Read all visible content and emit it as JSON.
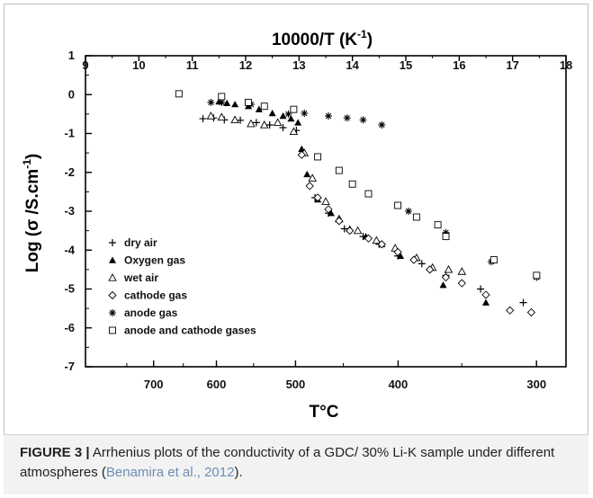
{
  "figure": {
    "top_title": "10000/T (K",
    "top_title_exp": "-1",
    "top_title_close": ")",
    "y_title": "Log (σ /S.cm",
    "y_title_exp": "-1",
    "y_title_close": ")",
    "x_title": "T°C"
  },
  "caption": {
    "label": "FIGURE 3 |",
    "text": " Arrhenius plots of the conductivity of a GDC/ 30% Li-K sample under different atmospheres (",
    "reference": "Benamira et al., 2012",
    "end": ")."
  },
  "chart_data": {
    "type": "scatter",
    "top_axis": {
      "label": "10000/T (K-1)",
      "range": [
        9,
        18
      ],
      "ticks": [
        "9",
        "10",
        "11",
        "12",
        "13",
        "14",
        "15",
        "16",
        "17",
        "18"
      ]
    },
    "bottom_axis": {
      "label": "T°C",
      "ticks": [
        "700",
        "600",
        "500",
        "400",
        "300"
      ]
    },
    "y_axis": {
      "label": "Log (σ /S.cm-1)",
      "range": [
        -7,
        1
      ],
      "ticks": [
        "1",
        "0",
        "-1",
        "-2",
        "-3",
        "-4",
        "-5",
        "-6",
        "-7"
      ]
    },
    "legend_position": "bottom-left",
    "series": [
      {
        "name": "dry air",
        "marker": "plus",
        "points": [
          [
            11.2,
            -0.62
          ],
          [
            11.4,
            -0.6
          ],
          [
            11.6,
            -0.65
          ],
          [
            11.9,
            -0.66
          ],
          [
            12.2,
            -0.72
          ],
          [
            12.45,
            -0.78
          ],
          [
            12.7,
            -0.85
          ],
          [
            12.95,
            -0.92
          ],
          [
            13.3,
            -2.65
          ],
          [
            13.55,
            -3.05
          ],
          [
            13.85,
            -3.45
          ],
          [
            14.2,
            -3.65
          ],
          [
            14.5,
            -3.85
          ],
          [
            14.85,
            -4.15
          ],
          [
            15.3,
            -4.35
          ],
          [
            15.75,
            -4.65
          ],
          [
            16.4,
            -5.0
          ],
          [
            17.2,
            -5.35
          ]
        ]
      },
      {
        "name": "Oxygen gas",
        "marker": "filled-triangle",
        "points": [
          [
            11.5,
            -0.18
          ],
          [
            11.65,
            -0.22
          ],
          [
            11.8,
            -0.25
          ],
          [
            12.05,
            -0.3
          ],
          [
            12.25,
            -0.38
          ],
          [
            12.5,
            -0.48
          ],
          [
            12.7,
            -0.55
          ],
          [
            12.85,
            -0.62
          ],
          [
            12.98,
            -0.72
          ],
          [
            13.05,
            -1.4
          ],
          [
            13.15,
            -2.05
          ],
          [
            13.35,
            -2.7
          ],
          [
            13.6,
            -3.05
          ],
          [
            13.95,
            -3.45
          ],
          [
            14.25,
            -3.65
          ],
          [
            14.55,
            -3.85
          ],
          [
            14.9,
            -4.15
          ],
          [
            15.7,
            -4.9
          ],
          [
            16.5,
            -5.35
          ]
        ]
      },
      {
        "name": "wet air",
        "marker": "open-triangle",
        "points": [
          [
            11.35,
            -0.55
          ],
          [
            11.55,
            -0.58
          ],
          [
            11.8,
            -0.65
          ],
          [
            12.1,
            -0.75
          ],
          [
            12.35,
            -0.78
          ],
          [
            12.6,
            -0.72
          ],
          [
            12.9,
            -0.95
          ],
          [
            13.1,
            -1.5
          ],
          [
            13.25,
            -2.15
          ],
          [
            13.5,
            -2.75
          ],
          [
            13.75,
            -3.2
          ],
          [
            14.1,
            -3.5
          ],
          [
            14.45,
            -3.75
          ],
          [
            14.8,
            -3.95
          ],
          [
            15.2,
            -4.2
          ],
          [
            15.5,
            -4.45
          ],
          [
            15.8,
            -4.5
          ],
          [
            16.05,
            -4.55
          ]
        ]
      },
      {
        "name": "cathode gas",
        "marker": "diamond",
        "points": [
          [
            13.05,
            -1.55
          ],
          [
            13.2,
            -2.35
          ],
          [
            13.35,
            -2.65
          ],
          [
            13.55,
            -2.95
          ],
          [
            13.75,
            -3.25
          ],
          [
            13.95,
            -3.5
          ],
          [
            14.3,
            -3.7
          ],
          [
            14.55,
            -3.85
          ],
          [
            14.85,
            -4.05
          ],
          [
            15.15,
            -4.25
          ],
          [
            15.45,
            -4.5
          ],
          [
            15.75,
            -4.7
          ],
          [
            16.05,
            -4.85
          ],
          [
            16.5,
            -5.15
          ],
          [
            16.95,
            -5.55
          ],
          [
            17.35,
            -5.6
          ]
        ]
      },
      {
        "name": "anode gas",
        "marker": "asterisk",
        "points": [
          [
            11.35,
            -0.2
          ],
          [
            11.55,
            -0.2
          ],
          [
            12.1,
            -0.25
          ],
          [
            12.8,
            -0.5
          ],
          [
            13.1,
            -0.48
          ],
          [
            13.55,
            -0.55
          ],
          [
            13.9,
            -0.6
          ],
          [
            14.2,
            -0.65
          ],
          [
            14.55,
            -0.78
          ],
          [
            15.05,
            -3.0
          ],
          [
            15.75,
            -3.55
          ],
          [
            16.6,
            -4.3
          ],
          [
            17.45,
            -4.7
          ]
        ]
      },
      {
        "name": "anode and cathode gases",
        "marker": "square",
        "points": [
          [
            10.75,
            0.02
          ],
          [
            11.55,
            -0.05
          ],
          [
            12.05,
            -0.2
          ],
          [
            12.35,
            -0.3
          ],
          [
            12.9,
            -0.38
          ],
          [
            13.35,
            -1.6
          ],
          [
            13.75,
            -1.95
          ],
          [
            14.0,
            -2.3
          ],
          [
            14.3,
            -2.55
          ],
          [
            14.85,
            -2.85
          ],
          [
            15.2,
            -3.15
          ],
          [
            15.6,
            -3.35
          ],
          [
            15.75,
            -3.65
          ],
          [
            16.65,
            -4.25
          ],
          [
            17.45,
            -4.65
          ]
        ]
      }
    ]
  }
}
